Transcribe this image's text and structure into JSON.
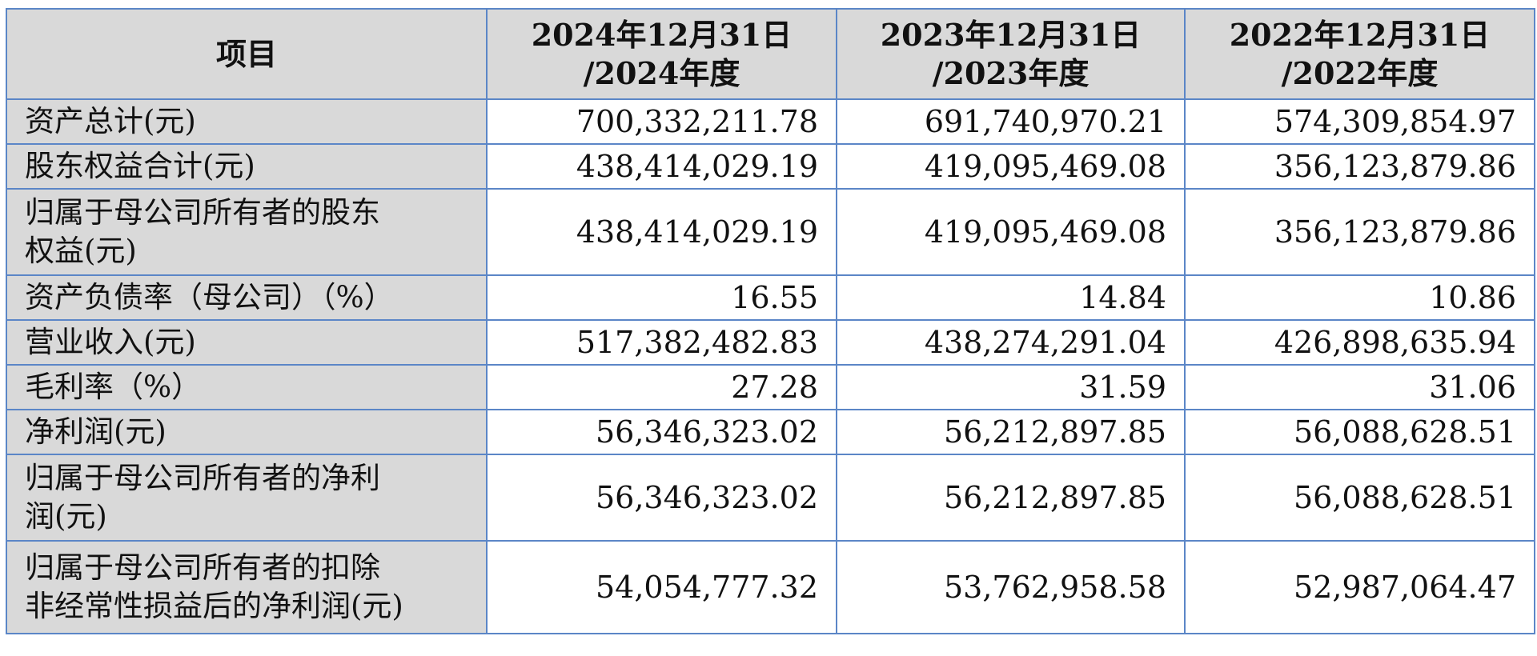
{
  "header": {
    "item": "项目",
    "col1_line1": "2024年12月31日",
    "col1_line2": "/2024年度",
    "col2_line1": "2023年12月31日",
    "col2_line2": "/2023年度",
    "col3_line1": "2022年12月31日",
    "col3_line2": "/2022年度"
  },
  "rows": [
    {
      "label": "资产总计(元)",
      "v2024": "700,332,211.78",
      "v2023": "691,740,970.21",
      "v2022": "574,309,854.97"
    },
    {
      "label": "股东权益合计(元)",
      "v2024": "438,414,029.19",
      "v2023": "419,095,469.08",
      "v2022": "356,123,879.86"
    },
    {
      "label_line1": "归属于母公司所有者的股东",
      "label_line2": "权益(元)",
      "v2024": "438,414,029.19",
      "v2023": "419,095,469.08",
      "v2022": "356,123,879.86"
    },
    {
      "label": "资产负债率（母公司）（%）",
      "v2024": "16.55",
      "v2023": "14.84",
      "v2022": "10.86"
    },
    {
      "label": "营业收入(元)",
      "v2024": "517,382,482.83",
      "v2023": "438,274,291.04",
      "v2022": "426,898,635.94"
    },
    {
      "label": "毛利率（%）",
      "v2024": "27.28",
      "v2023": "31.59",
      "v2022": "31.06"
    },
    {
      "label": "净利润(元)",
      "v2024": "56,346,323.02",
      "v2023": "56,212,897.85",
      "v2022": "56,088,628.51"
    },
    {
      "label_line1": "归属于母公司所有者的净利",
      "label_line2": "润(元)",
      "v2024": "56,346,323.02",
      "v2023": "56,212,897.85",
      "v2022": "56,088,628.51"
    },
    {
      "label_line1": "归属于母公司所有者的扣除",
      "label_line2": "非经常性损益后的净利润(元)",
      "v2024": "54,054,777.32",
      "v2023": "53,762,958.58",
      "v2022": "52,987,064.47"
    }
  ]
}
